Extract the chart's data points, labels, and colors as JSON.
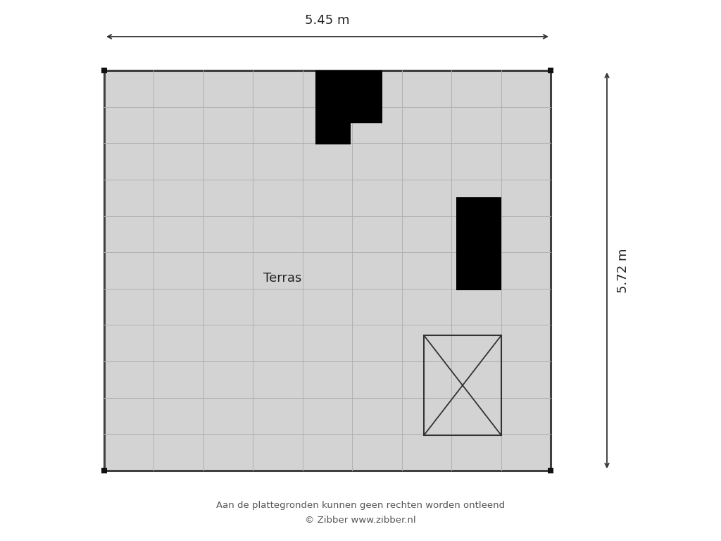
{
  "background_color": "#ffffff",
  "floor_color": "#d3d3d3",
  "floor_border_color": "#404040",
  "grid_color": "#b0b0b0",
  "wall_color": "#000000",
  "title_width": "5.45 m",
  "title_height": "5.72 m",
  "room_label": "Terras",
  "footer_line1": "Aan de plattegronden kunnen geen rechten worden ontleend",
  "footer_line2": "© Zibber www.zibber.nl",
  "grid_cols": 9,
  "grid_rows": 11,
  "arrow_color": "#333333",
  "dim_fontsize": 13,
  "label_fontsize": 13,
  "footer_fontsize": 9.5
}
